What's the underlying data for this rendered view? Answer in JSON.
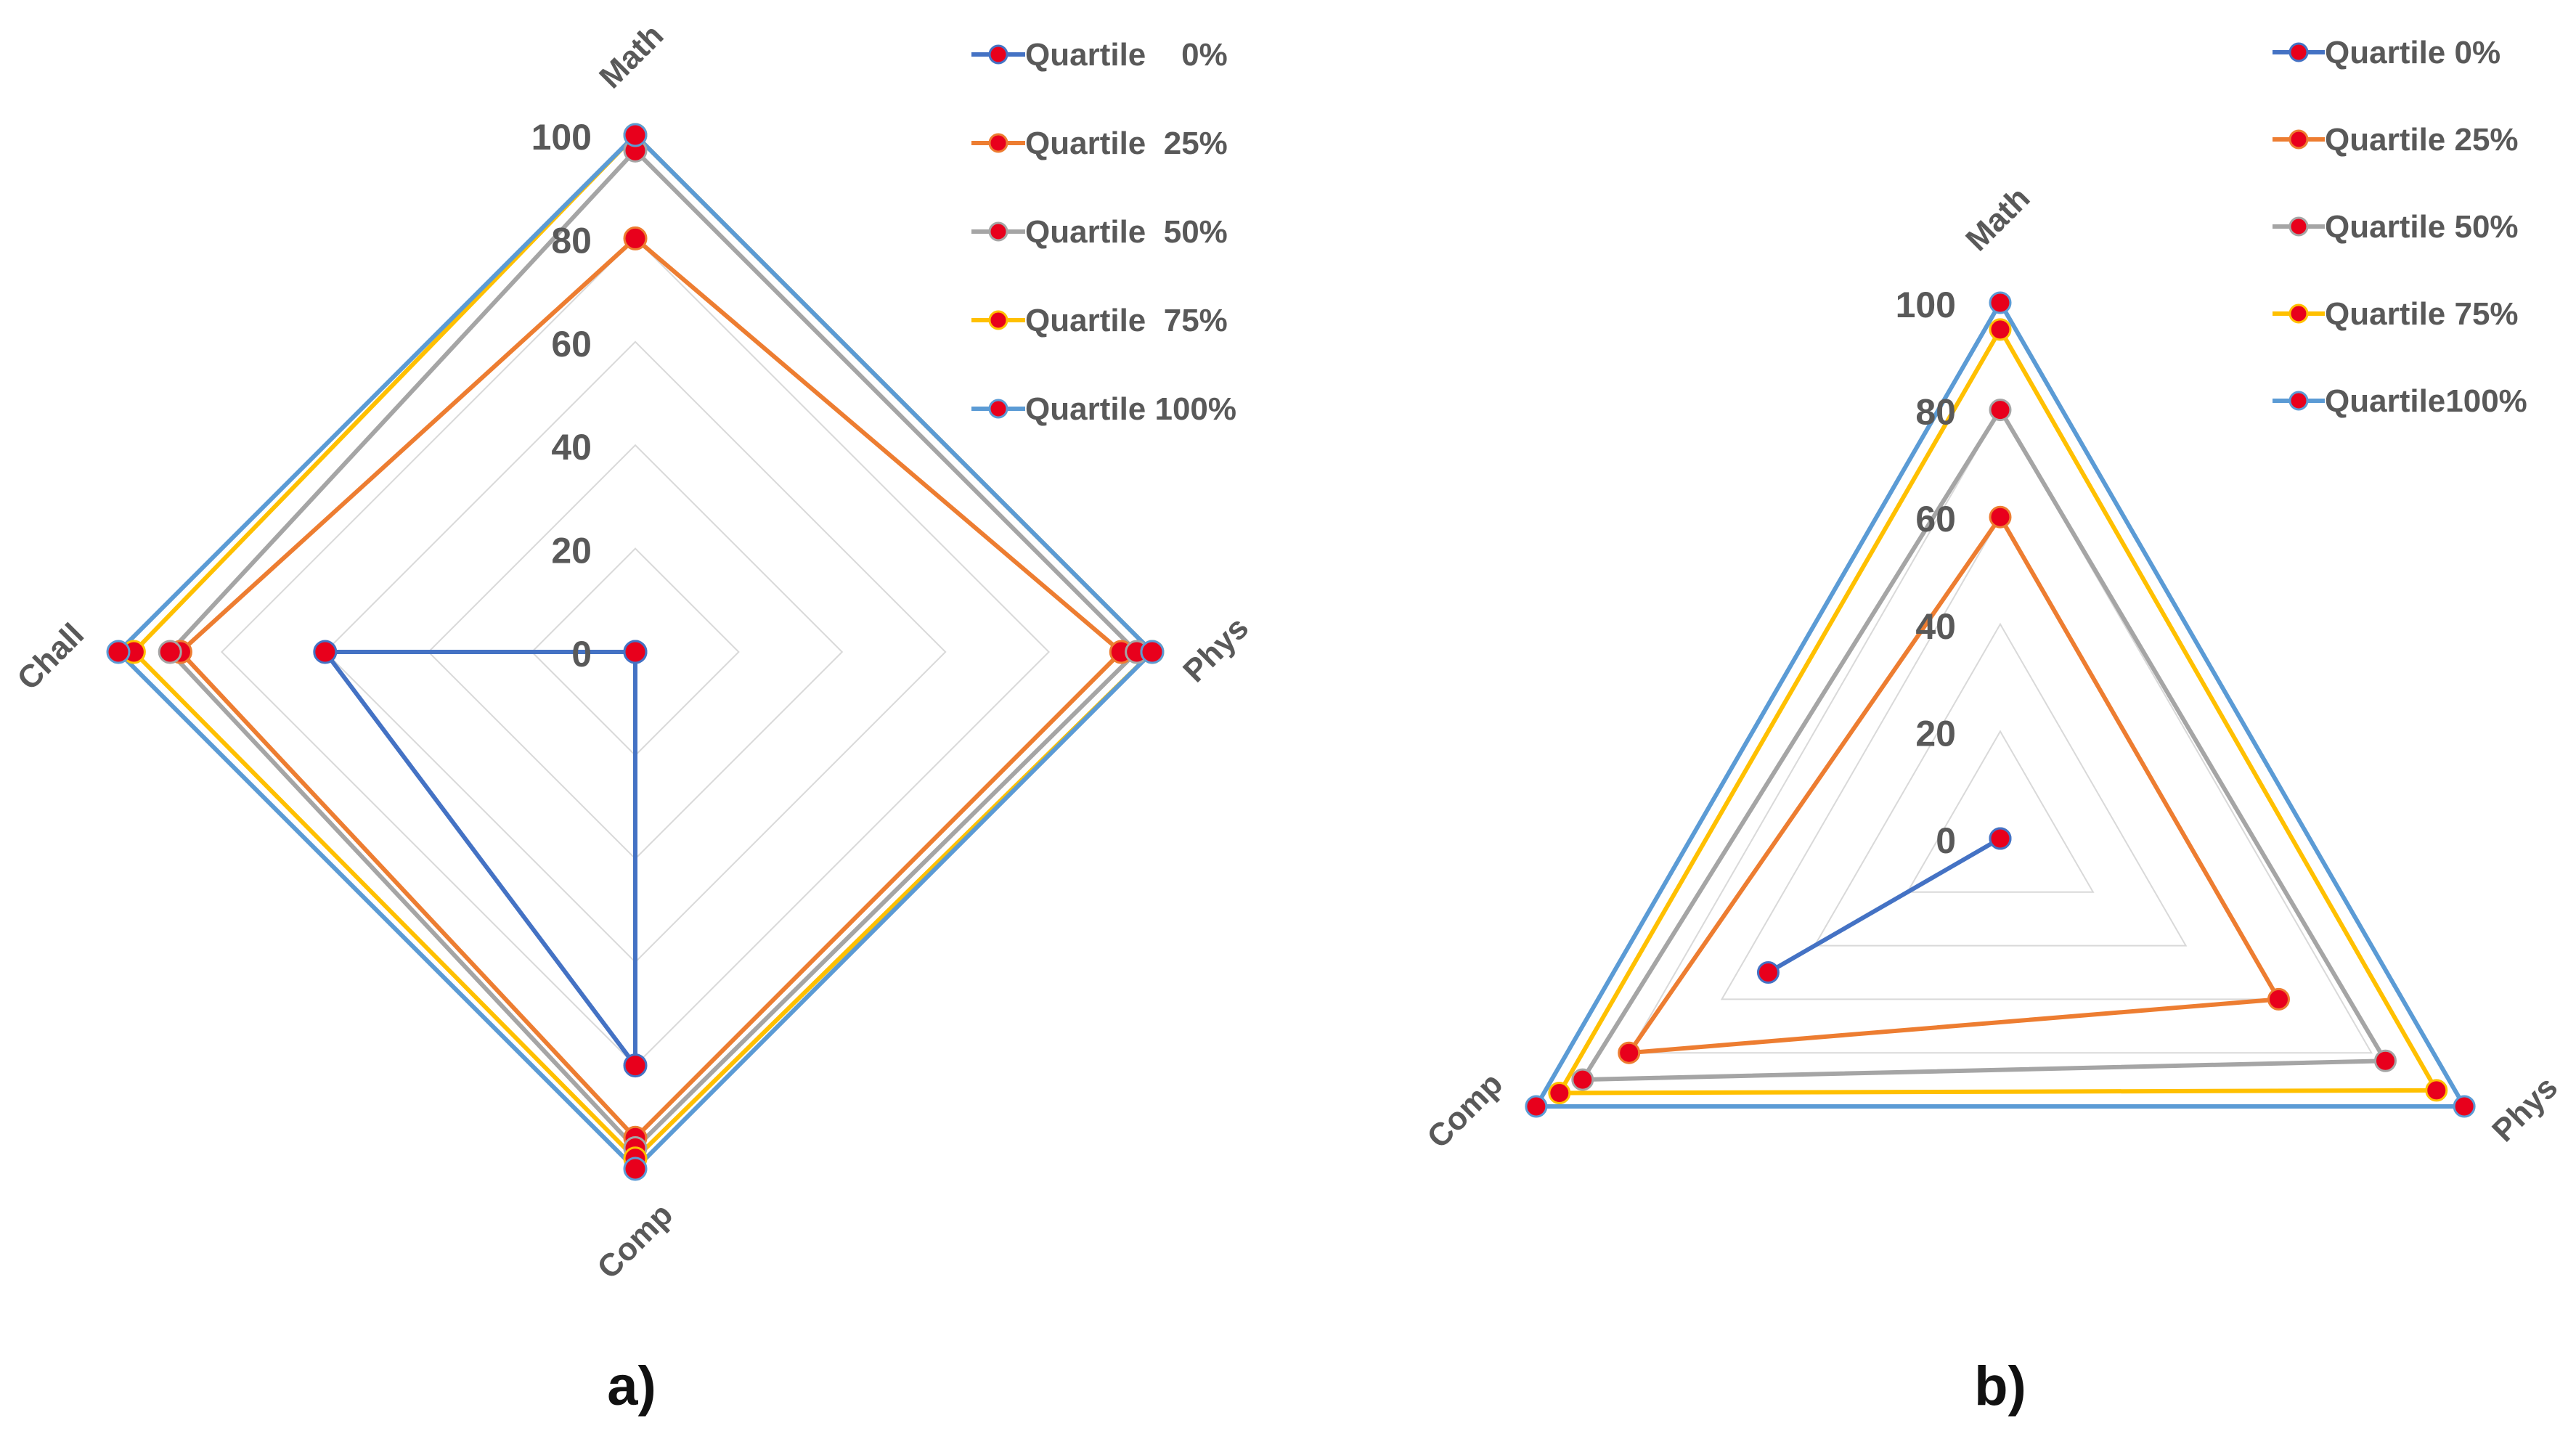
{
  "figure": {
    "panels": [
      "a)",
      "b)"
    ]
  },
  "chart_data": [
    {
      "type": "radar",
      "panel": "a)",
      "axes": [
        "Math",
        "Phys",
        "Comp",
        "Chall"
      ],
      "rlim": [
        0,
        100
      ],
      "ticks": [
        "0",
        "20",
        "40",
        "60",
        "80",
        "100"
      ],
      "legend_position": "top-right",
      "series": [
        {
          "name": "Quartile    0%",
          "color": "#4472c4",
          "values": [
            0,
            0,
            80,
            60
          ]
        },
        {
          "name": "Quartile  25%",
          "color": "#ed7d31",
          "values": [
            80,
            94,
            94,
            88
          ]
        },
        {
          "name": "Quartile  50%",
          "color": "#a5a5a5",
          "values": [
            97,
            97,
            96,
            90
          ]
        },
        {
          "name": "Quartile  75%",
          "color": "#ffc000",
          "values": [
            100,
            100,
            98,
            97
          ]
        },
        {
          "name": "Quartile 100%",
          "color": "#5b9bd5",
          "values": [
            100,
            100,
            100,
            100
          ]
        }
      ]
    },
    {
      "type": "radar",
      "panel": "b)",
      "axes": [
        "Math",
        "Phys",
        "Comp"
      ],
      "rlim": [
        0,
        100
      ],
      "ticks": [
        "0",
        "20",
        "40",
        "60",
        "80",
        "100"
      ],
      "legend_position": "top-right",
      "series": [
        {
          "name": "Quartile 0%",
          "color": "#4472c4",
          "values": [
            0,
            0,
            50
          ]
        },
        {
          "name": "Quartile 25%",
          "color": "#ed7d31",
          "values": [
            60,
            60,
            80
          ]
        },
        {
          "name": "Quartile 50%",
          "color": "#a5a5a5",
          "values": [
            80,
            83,
            90
          ]
        },
        {
          "name": "Quartile 75%",
          "color": "#ffc000",
          "values": [
            95,
            94,
            95
          ]
        },
        {
          "name": "Quartile100%",
          "color": "#5b9bd5",
          "values": [
            100,
            100,
            100
          ]
        }
      ]
    }
  ]
}
